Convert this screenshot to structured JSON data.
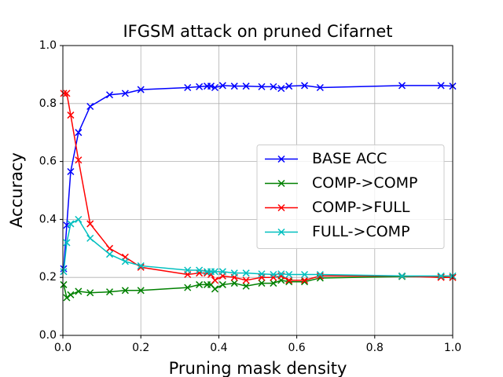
{
  "chart_data": {
    "type": "line",
    "title": "IFGSM attack on pruned Cifarnet",
    "x_label": "Pruning mask density",
    "y_label": "Accuracy",
    "x": [
      0.002,
      0.01,
      0.02,
      0.04,
      0.07,
      0.12,
      0.16,
      0.2,
      0.32,
      0.35,
      0.37,
      0.38,
      0.39,
      0.41,
      0.44,
      0.47,
      0.51,
      0.54,
      0.56,
      0.58,
      0.62,
      0.66,
      0.87,
      0.97,
      1.0
    ],
    "series": [
      {
        "name": "BASE ACC",
        "color": "#0000ff",
        "values": [
          0.23,
          0.38,
          0.565,
          0.7,
          0.79,
          0.83,
          0.835,
          0.848,
          0.855,
          0.858,
          0.86,
          0.86,
          0.855,
          0.862,
          0.86,
          0.86,
          0.858,
          0.858,
          0.852,
          0.86,
          0.862,
          0.855,
          0.862,
          0.862,
          0.86
        ]
      },
      {
        "name": "COMP->COMP",
        "color": "#008000",
        "values": [
          0.175,
          0.13,
          0.14,
          0.152,
          0.147,
          0.15,
          0.155,
          0.155,
          0.165,
          0.175,
          0.175,
          0.175,
          0.16,
          0.175,
          0.18,
          0.17,
          0.18,
          0.18,
          0.19,
          0.185,
          0.185,
          0.198,
          0.203,
          0.202,
          0.2
        ]
      },
      {
        "name": "COMP->FULL",
        "color": "#ff0000",
        "values": [
          0.835,
          0.835,
          0.76,
          0.605,
          0.385,
          0.3,
          0.27,
          0.235,
          0.21,
          0.215,
          0.215,
          0.21,
          0.19,
          0.205,
          0.2,
          0.19,
          0.2,
          0.2,
          0.205,
          0.19,
          0.19,
          0.205,
          0.205,
          0.2,
          0.2
        ]
      },
      {
        "name": "FULL->COMP",
        "color": "#00bfbf",
        "values": [
          0.22,
          0.32,
          0.385,
          0.4,
          0.335,
          0.28,
          0.255,
          0.24,
          0.225,
          0.225,
          0.22,
          0.22,
          0.22,
          0.22,
          0.215,
          0.215,
          0.212,
          0.21,
          0.212,
          0.21,
          0.21,
          0.21,
          0.205,
          0.205,
          0.205
        ]
      }
    ],
    "xlim": [
      0,
      1
    ],
    "ylim": [
      0,
      1
    ],
    "xticks": [
      {
        "value": 0,
        "label": "0.0"
      },
      {
        "value": 0.2,
        "label": "0.2"
      },
      {
        "value": 0.4,
        "label": "0.4"
      },
      {
        "value": 0.6,
        "label": "0.6"
      },
      {
        "value": 0.8,
        "label": "0.8"
      },
      {
        "value": 1,
        "label": "1.0"
      }
    ],
    "yticks": [
      {
        "value": 0,
        "label": "0.0"
      },
      {
        "value": 0.2,
        "label": "0.2"
      },
      {
        "value": 0.4,
        "label": "0.4"
      },
      {
        "value": 0.6,
        "label": "0.6"
      },
      {
        "value": 0.8,
        "label": "0.8"
      },
      {
        "value": 1,
        "label": "1.0"
      }
    ],
    "grid": true,
    "legend": "center right"
  }
}
